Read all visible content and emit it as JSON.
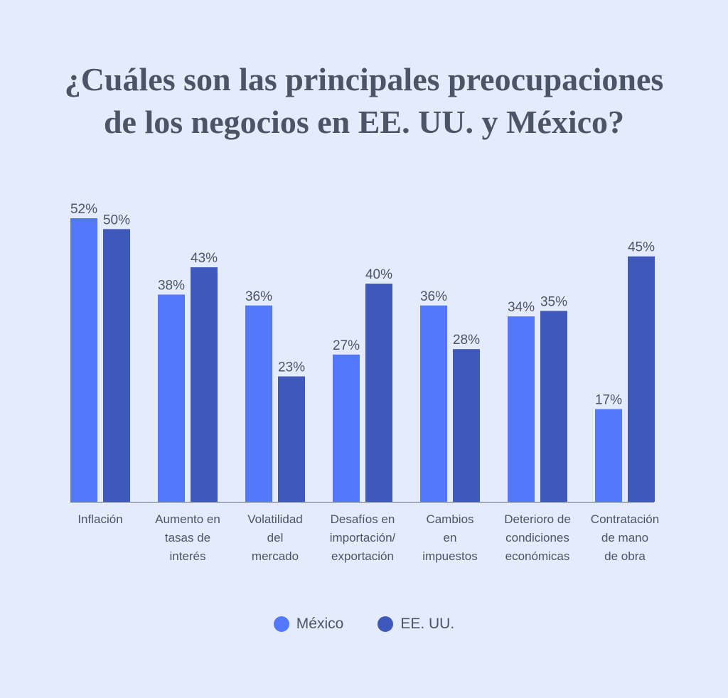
{
  "chart_data": {
    "type": "bar",
    "title_lines": [
      "¿Cuáles son las principales preocupaciones",
      "de los negocios en EE. UU. y México?"
    ],
    "categories": [
      [
        "Inflación"
      ],
      [
        "Aumento en",
        "tasas de",
        "interés"
      ],
      [
        "Volatilidad",
        "del",
        "mercado"
      ],
      [
        "Desafíos en",
        "importación/",
        "exportación"
      ],
      [
        "Cambios",
        "en",
        "impuestos"
      ],
      [
        "Deterioro de",
        "condiciones",
        "económicas"
      ],
      [
        "Contratación",
        "de mano",
        "de obra"
      ]
    ],
    "series": [
      {
        "name": "México",
        "color": "#5478fb",
        "values": [
          52,
          38,
          36,
          27,
          36,
          34,
          17
        ]
      },
      {
        "name": "EE. UU.",
        "color": "#3f58bb",
        "values": [
          50,
          43,
          23,
          40,
          28,
          35,
          45
        ]
      }
    ],
    "value_suffix": "%",
    "ylim": [
      0,
      52
    ],
    "legend_position": "bottom-center",
    "grid": false
  }
}
